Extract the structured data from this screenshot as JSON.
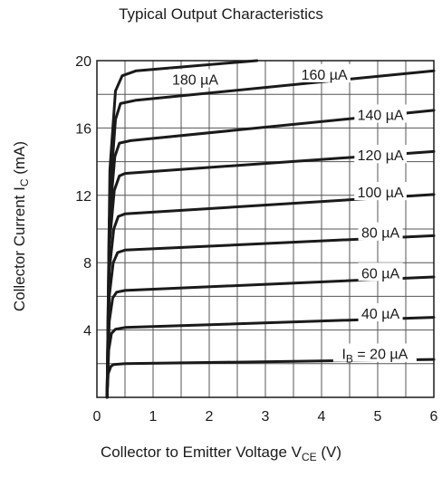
{
  "chart_data": {
    "type": "line",
    "title": "Typical Output Characteristics",
    "xlabel": {
      "prefix": "Collector to Emitter Voltage V",
      "sub": "CE",
      "suffix": " (V)"
    },
    "ylabel": {
      "prefix": "Collector Current I",
      "sub": "C",
      "suffix": " (mA)"
    },
    "xlim": [
      0,
      6
    ],
    "ylim": [
      0,
      20
    ],
    "x_ticks": [
      0,
      1,
      2,
      3,
      4,
      5,
      6
    ],
    "y_ticks": [
      4,
      8,
      12,
      16,
      20
    ],
    "x_grid_step": 0.5,
    "y_grid_step": 2,
    "grid": true,
    "line_color": "#1a1a1a",
    "series": [
      {
        "name": "20 µA",
        "points": [
          [
            0.18,
            0
          ],
          [
            0.2,
            1.4
          ],
          [
            0.25,
            1.85
          ],
          [
            0.3,
            1.95
          ],
          [
            0.5,
            2.0
          ],
          [
            6,
            2.25
          ]
        ]
      },
      {
        "name": "40 µA",
        "points": [
          [
            0.18,
            0
          ],
          [
            0.21,
            2.8
          ],
          [
            0.26,
            3.8
          ],
          [
            0.33,
            4.05
          ],
          [
            0.5,
            4.15
          ],
          [
            6,
            4.75
          ]
        ]
      },
      {
        "name": "60 µA",
        "points": [
          [
            0.18,
            0
          ],
          [
            0.22,
            4.5
          ],
          [
            0.28,
            5.9
          ],
          [
            0.35,
            6.25
          ],
          [
            0.5,
            6.35
          ],
          [
            6,
            7.15
          ]
        ]
      },
      {
        "name": "80 µA",
        "points": [
          [
            0.18,
            0
          ],
          [
            0.22,
            6.0
          ],
          [
            0.29,
            8.0
          ],
          [
            0.37,
            8.6
          ],
          [
            0.5,
            8.75
          ],
          [
            6,
            9.6
          ]
        ]
      },
      {
        "name": "100 µA",
        "points": [
          [
            0.18,
            0
          ],
          [
            0.22,
            7.5
          ],
          [
            0.3,
            10.0
          ],
          [
            0.38,
            10.75
          ],
          [
            0.5,
            10.9
          ],
          [
            6,
            12.05
          ]
        ]
      },
      {
        "name": "120 µA",
        "points": [
          [
            0.18,
            0
          ],
          [
            0.22,
            9.0
          ],
          [
            0.31,
            12.3
          ],
          [
            0.4,
            13.15
          ],
          [
            0.5,
            13.3
          ],
          [
            6,
            14.6
          ]
        ]
      },
      {
        "name": "140 µA",
        "points": [
          [
            0.18,
            0
          ],
          [
            0.22,
            10.5
          ],
          [
            0.32,
            14.3
          ],
          [
            0.4,
            15.1
          ],
          [
            0.6,
            15.25
          ],
          [
            6,
            17.05
          ]
        ]
      },
      {
        "name": "160 µA",
        "points": [
          [
            0.18,
            0
          ],
          [
            0.23,
            12.0
          ],
          [
            0.33,
            16.5
          ],
          [
            0.42,
            17.45
          ],
          [
            0.7,
            17.65
          ],
          [
            6,
            19.4
          ]
        ]
      },
      {
        "name": "180 µA",
        "points": [
          [
            0.18,
            0
          ],
          [
            0.23,
            13.5
          ],
          [
            0.33,
            18.2
          ],
          [
            0.45,
            19.1
          ],
          [
            0.7,
            19.4
          ],
          [
            2.85,
            20.0
          ]
        ]
      }
    ],
    "annotations": [
      {
        "text": "180 µA",
        "x": 1.75,
        "y": 18.9
      },
      {
        "text": "160 µA",
        "x": 4.05,
        "y": 19.2
      },
      {
        "text": "140 µA",
        "x": 5.05,
        "y": 16.8
      },
      {
        "text": "120 µA",
        "x": 5.05,
        "y": 14.4
      },
      {
        "text": "100 µA",
        "x": 5.05,
        "y": 12.2
      },
      {
        "text": "80 µA",
        "x": 5.05,
        "y": 9.8
      },
      {
        "text": "60 µA",
        "x": 5.05,
        "y": 7.4
      },
      {
        "text": "40 µA",
        "x": 5.05,
        "y": 5.0
      },
      {
        "text_prefix": "I",
        "text_sub": "B",
        "text": " = 20 µA",
        "x": 4.95,
        "y": 2.6
      }
    ]
  }
}
